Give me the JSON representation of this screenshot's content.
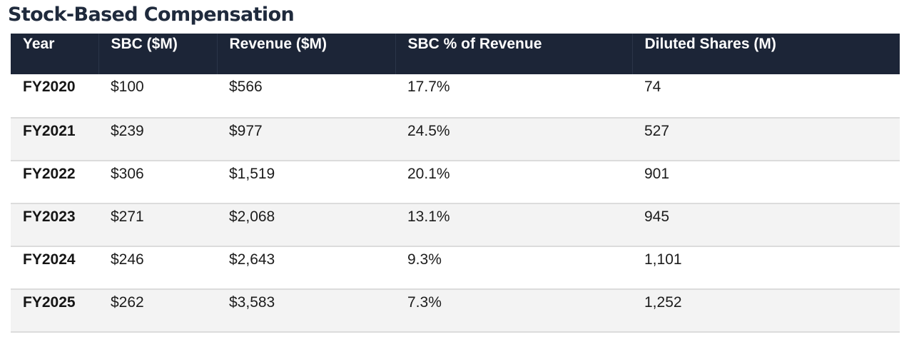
{
  "title": "Stock-Based Compensation",
  "table": {
    "headers": [
      "Year",
      "SBC ($M)",
      "Revenue ($M)",
      "SBC % of Revenue",
      "Diluted Shares (M)"
    ],
    "rows": [
      [
        "FY2020",
        "$100",
        "$566",
        "17.7%",
        "74"
      ],
      [
        "FY2021",
        "$239",
        "$977",
        "24.5%",
        "527"
      ],
      [
        "FY2022",
        "$306",
        "$1,519",
        "20.1%",
        "901"
      ],
      [
        "FY2023",
        "$271",
        "$2,068",
        "13.1%",
        "945"
      ],
      [
        "FY2024",
        "$246",
        "$2,643",
        "9.3%",
        "1,101"
      ],
      [
        "FY2025",
        "$262",
        "$3,583",
        "7.3%",
        "1,252"
      ]
    ]
  },
  "colors": {
    "header_bg": "#1c2537",
    "header_text": "#ffffff",
    "row_alt_bg": "#f3f3f3",
    "title_text": "#1f2a3c"
  }
}
